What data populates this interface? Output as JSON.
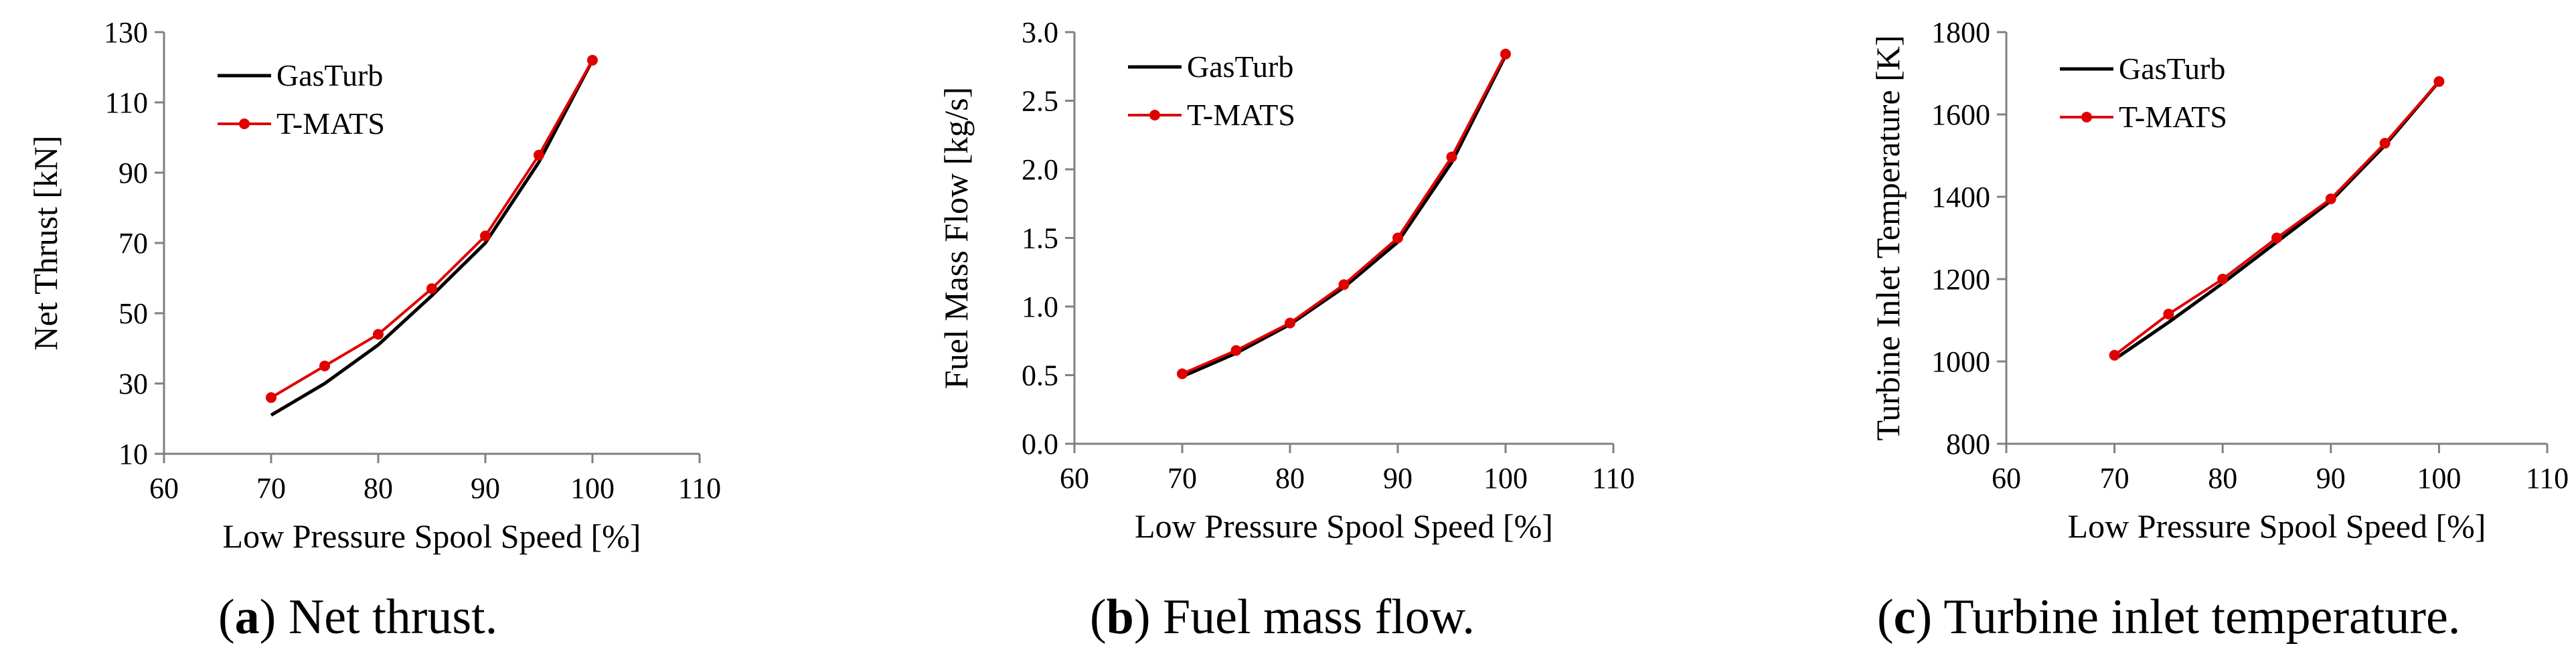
{
  "chart_data": [
    {
      "type": "line",
      "caption_letter": "a",
      "caption_text": " Net thrust.",
      "xlabel": "Low Pressure Spool Speed [%]",
      "ylabel": "Net Thrust [kN]",
      "xlim": [
        60,
        110
      ],
      "ylim": [
        10,
        130
      ],
      "xticks": [
        60,
        70,
        80,
        90,
        100,
        110
      ],
      "yticks": [
        10,
        30,
        50,
        70,
        90,
        110,
        130
      ],
      "legend_position": "top-left",
      "grid": false,
      "series": [
        {
          "name": "GasTurb",
          "color": "#000000",
          "markers": false,
          "x": [
            70,
            75,
            80,
            85,
            90,
            95,
            100
          ],
          "y": [
            21,
            30,
            41,
            55,
            70,
            93,
            122
          ]
        },
        {
          "name": "T-MATS",
          "color": "#e00000",
          "markers": true,
          "x": [
            70,
            75,
            80,
            85,
            90,
            95,
            100
          ],
          "y": [
            26,
            35,
            44,
            57,
            72,
            95,
            122
          ]
        }
      ]
    },
    {
      "type": "line",
      "caption_letter": "b",
      "caption_text": " Fuel mass flow.",
      "xlabel": "Low Pressure Spool Speed [%]",
      "ylabel": "Fuel Mass Flow [kg/s]",
      "xlim": [
        60,
        110
      ],
      "ylim": [
        0,
        3
      ],
      "xticks": [
        60,
        70,
        80,
        90,
        100,
        110
      ],
      "yticks": [
        "0.0",
        "0.5",
        "1.0",
        "1.5",
        "2.0",
        "2.5",
        "3.0"
      ],
      "legend_position": "top-left",
      "grid": false,
      "series": [
        {
          "name": "GasTurb",
          "color": "#000000",
          "markers": false,
          "x": [
            70,
            75,
            80,
            85,
            90,
            95,
            100
          ],
          "y": [
            0.49,
            0.66,
            0.87,
            1.14,
            1.47,
            2.05,
            2.83
          ]
        },
        {
          "name": "T-MATS",
          "color": "#e00000",
          "markers": true,
          "x": [
            70,
            75,
            80,
            85,
            90,
            95,
            100
          ],
          "y": [
            0.51,
            0.68,
            0.88,
            1.16,
            1.5,
            2.09,
            2.84
          ]
        }
      ]
    },
    {
      "type": "line",
      "caption_letter": "c",
      "caption_text": " Turbine inlet temperature.",
      "xlabel": "Low Pressure Spool Speed [%]",
      "ylabel": "Turbine Inlet Temperature [K]",
      "xlim": [
        60,
        110
      ],
      "ylim": [
        800,
        1800
      ],
      "xticks": [
        60,
        70,
        80,
        90,
        100,
        110
      ],
      "yticks": [
        800,
        1000,
        1200,
        1400,
        1600,
        1800
      ],
      "legend_position": "top-left",
      "grid": false,
      "series": [
        {
          "name": "GasTurb",
          "color": "#000000",
          "markers": false,
          "x": [
            70,
            75,
            80,
            85,
            90,
            95,
            100
          ],
          "y": [
            1005,
            1095,
            1190,
            1290,
            1390,
            1525,
            1680
          ]
        },
        {
          "name": "T-MATS",
          "color": "#e00000",
          "markers": true,
          "x": [
            70,
            75,
            80,
            85,
            90,
            95,
            100
          ],
          "y": [
            1015,
            1115,
            1200,
            1300,
            1395,
            1530,
            1680
          ]
        }
      ]
    }
  ]
}
